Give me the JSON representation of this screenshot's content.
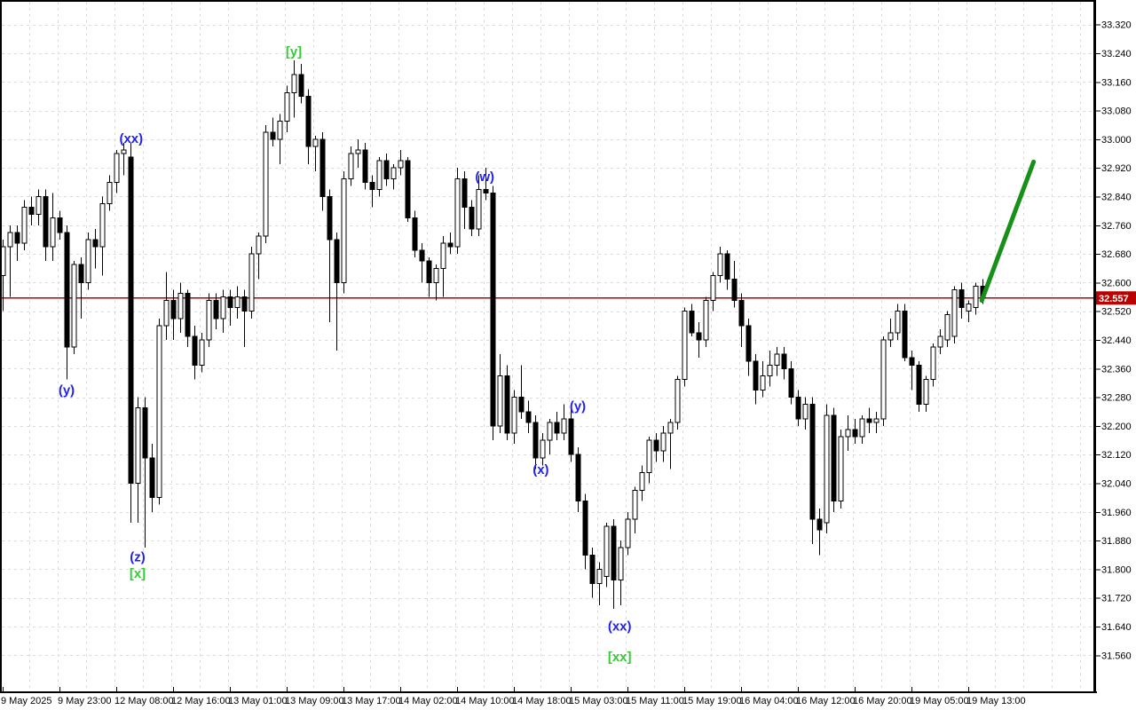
{
  "colors": {
    "background": "#ffffff",
    "grid": "#dcdcdc",
    "axis": "#000000",
    "text": "#000000",
    "candle_outline": "#000000",
    "bull_body": "#ffffff",
    "bear_body": "#000000",
    "price_line": "#b80000",
    "price_badge_bg": "#bb0000",
    "price_badge_text": "#ffffff",
    "label_blue": "#2222ee",
    "label_green": "#32cd32",
    "arrow_green": "#169016"
  },
  "price_axis": {
    "labels": [
      "33.320",
      "33.240",
      "33.160",
      "33.080",
      "33.000",
      "32.920",
      "32.840",
      "32.760",
      "32.680",
      "32.600",
      "32.520",
      "32.440",
      "32.360",
      "32.280",
      "32.200",
      "32.120",
      "32.040",
      "31.960",
      "31.880",
      "31.800",
      "31.720",
      "31.640",
      "31.560"
    ],
    "current_price_label": "32.557"
  },
  "time_axis": {
    "labels": [
      "9 May 2025",
      "9 May 23:00",
      "12 May 08:00",
      "12 May 16:00",
      "13 May 01:00",
      "13 May 09:00",
      "13 May 17:00",
      "14 May 02:00",
      "14 May 10:00",
      "14 May 18:00",
      "15 May 03:00",
      "15 May 11:00",
      "15 May 19:00",
      "16 May 04:00",
      "16 May 12:00",
      "16 May 20:00",
      "19 May 05:00",
      "19 May 13:00"
    ]
  },
  "chart_data": {
    "type": "candlestick",
    "title": "",
    "ylabel": "Price",
    "ylim": [
      31.52,
      33.36
    ],
    "price_grid_step": 0.08,
    "current_price": 32.557,
    "candles_ohlc": [
      [
        32.62,
        32.72,
        32.52,
        32.7
      ],
      [
        32.7,
        32.76,
        32.56,
        32.74
      ],
      [
        32.74,
        32.76,
        32.66,
        32.71
      ],
      [
        32.71,
        32.83,
        32.69,
        32.81
      ],
      [
        32.81,
        32.84,
        32.76,
        32.79
      ],
      [
        32.79,
        32.86,
        32.76,
        32.84
      ],
      [
        32.84,
        32.86,
        32.66,
        32.7
      ],
      [
        32.7,
        32.85,
        32.66,
        32.78
      ],
      [
        32.78,
        32.8,
        32.72,
        32.74
      ],
      [
        32.74,
        32.76,
        32.33,
        32.42
      ],
      [
        32.42,
        32.66,
        32.4,
        32.65
      ],
      [
        32.65,
        32.67,
        32.5,
        32.6
      ],
      [
        32.6,
        32.74,
        32.58,
        32.72
      ],
      [
        32.72,
        32.75,
        32.64,
        32.7
      ],
      [
        32.7,
        32.84,
        32.62,
        32.82
      ],
      [
        32.82,
        32.9,
        32.8,
        32.88
      ],
      [
        32.88,
        32.97,
        32.85,
        32.96
      ],
      [
        32.96,
        32.99,
        32.9,
        32.97
      ],
      [
        32.95,
        32.99,
        31.93,
        32.04
      ],
      [
        32.04,
        32.28,
        31.93,
        32.25
      ],
      [
        32.25,
        32.28,
        31.86,
        32.11
      ],
      [
        32.11,
        32.15,
        31.96,
        32.0
      ],
      [
        32.0,
        32.5,
        31.98,
        32.48
      ],
      [
        32.48,
        32.63,
        32.44,
        32.55
      ],
      [
        32.55,
        32.58,
        32.44,
        32.5
      ],
      [
        32.5,
        32.6,
        32.46,
        32.57
      ],
      [
        32.57,
        32.58,
        32.42,
        32.45
      ],
      [
        32.45,
        32.48,
        32.33,
        32.37
      ],
      [
        32.37,
        32.46,
        32.35,
        32.44
      ],
      [
        32.44,
        32.57,
        32.42,
        32.55
      ],
      [
        32.55,
        32.57,
        32.47,
        32.5
      ],
      [
        32.5,
        32.58,
        32.46,
        32.56
      ],
      [
        32.56,
        32.58,
        32.48,
        32.53
      ],
      [
        32.53,
        32.59,
        32.5,
        32.56
      ],
      [
        32.56,
        32.58,
        32.42,
        32.52
      ],
      [
        32.52,
        32.7,
        32.5,
        32.68
      ],
      [
        32.68,
        32.74,
        32.61,
        32.73
      ],
      [
        32.73,
        33.04,
        32.71,
        33.02
      ],
      [
        33.02,
        33.06,
        32.98,
        33.0
      ],
      [
        33.0,
        33.07,
        32.93,
        33.05
      ],
      [
        33.05,
        33.15,
        33.02,
        33.13
      ],
      [
        33.13,
        33.22,
        33.06,
        33.18
      ],
      [
        33.18,
        33.21,
        33.1,
        33.12
      ],
      [
        33.12,
        33.14,
        32.93,
        32.98
      ],
      [
        32.98,
        33.01,
        32.91,
        33.0
      ],
      [
        33.0,
        33.02,
        32.8,
        32.84
      ],
      [
        32.84,
        32.86,
        32.49,
        32.72
      ],
      [
        32.72,
        32.74,
        32.41,
        32.6
      ],
      [
        32.6,
        32.91,
        32.57,
        32.89
      ],
      [
        32.89,
        32.98,
        32.87,
        32.96
      ],
      [
        32.96,
        33.0,
        32.92,
        32.97
      ],
      [
        32.97,
        32.99,
        32.86,
        32.88
      ],
      [
        32.88,
        32.9,
        32.81,
        32.86
      ],
      [
        32.86,
        32.95,
        32.84,
        32.94
      ],
      [
        32.94,
        32.96,
        32.87,
        32.89
      ],
      [
        32.89,
        32.93,
        32.86,
        32.92
      ],
      [
        32.92,
        32.97,
        32.9,
        32.94
      ],
      [
        32.94,
        32.95,
        32.77,
        32.78
      ],
      [
        32.78,
        32.8,
        32.67,
        32.69
      ],
      [
        32.69,
        32.71,
        32.6,
        32.66
      ],
      [
        32.66,
        32.67,
        32.56,
        32.6
      ],
      [
        32.6,
        32.65,
        32.55,
        32.64
      ],
      [
        32.64,
        32.73,
        32.56,
        32.71
      ],
      [
        32.71,
        32.74,
        32.68,
        32.7
      ],
      [
        32.7,
        32.92,
        32.68,
        32.89
      ],
      [
        32.89,
        32.91,
        32.75,
        32.81
      ],
      [
        32.81,
        32.83,
        32.73,
        32.75
      ],
      [
        32.75,
        32.9,
        32.73,
        32.86
      ],
      [
        32.86,
        32.92,
        32.83,
        32.85
      ],
      [
        32.85,
        32.87,
        32.16,
        32.2
      ],
      [
        32.2,
        32.4,
        32.18,
        32.34
      ],
      [
        32.34,
        32.37,
        32.16,
        32.18
      ],
      [
        32.18,
        32.3,
        32.15,
        32.28
      ],
      [
        32.28,
        32.37,
        32.22,
        32.24
      ],
      [
        32.24,
        32.27,
        32.18,
        32.21
      ],
      [
        32.21,
        32.23,
        32.08,
        32.11
      ],
      [
        32.11,
        32.18,
        32.09,
        32.16
      ],
      [
        32.16,
        32.22,
        32.12,
        32.21
      ],
      [
        32.21,
        32.24,
        32.16,
        32.18
      ],
      [
        32.18,
        32.26,
        32.16,
        32.22
      ],
      [
        32.22,
        32.26,
        32.1,
        32.12
      ],
      [
        32.12,
        32.14,
        31.96,
        31.99
      ],
      [
        31.99,
        32.01,
        31.8,
        31.84
      ],
      [
        31.84,
        31.86,
        31.72,
        31.76
      ],
      [
        31.76,
        31.82,
        31.7,
        31.8
      ],
      [
        31.78,
        31.93,
        31.75,
        31.92
      ],
      [
        31.92,
        31.94,
        31.69,
        31.77
      ],
      [
        31.77,
        31.88,
        31.7,
        31.86
      ],
      [
        31.86,
        31.96,
        31.84,
        31.94
      ],
      [
        31.94,
        32.03,
        31.9,
        32.02
      ],
      [
        32.02,
        32.09,
        31.99,
        32.07
      ],
      [
        32.07,
        32.17,
        32.04,
        32.16
      ],
      [
        32.16,
        32.18,
        32.1,
        32.13
      ],
      [
        32.13,
        32.2,
        32.1,
        32.18
      ],
      [
        32.18,
        32.22,
        32.08,
        32.21
      ],
      [
        32.21,
        32.34,
        32.19,
        32.33
      ],
      [
        32.33,
        32.53,
        32.31,
        32.52
      ],
      [
        32.52,
        32.54,
        32.45,
        32.46
      ],
      [
        32.46,
        32.49,
        32.39,
        32.44
      ],
      [
        32.44,
        32.56,
        32.42,
        32.55
      ],
      [
        32.55,
        32.63,
        32.52,
        32.62
      ],
      [
        32.62,
        32.7,
        32.6,
        32.68
      ],
      [
        32.68,
        32.69,
        32.58,
        32.61
      ],
      [
        32.61,
        32.66,
        32.53,
        32.55
      ],
      [
        32.55,
        32.57,
        32.42,
        32.48
      ],
      [
        32.48,
        32.5,
        32.34,
        32.38
      ],
      [
        32.38,
        32.4,
        32.26,
        32.3
      ],
      [
        32.3,
        32.38,
        32.28,
        32.34
      ],
      [
        32.34,
        32.41,
        32.31,
        32.37
      ],
      [
        32.37,
        32.42,
        32.34,
        32.4
      ],
      [
        32.4,
        32.42,
        32.33,
        32.36
      ],
      [
        32.36,
        32.38,
        32.26,
        32.28
      ],
      [
        32.28,
        32.3,
        32.2,
        32.22
      ],
      [
        32.22,
        32.28,
        32.19,
        32.26
      ],
      [
        32.26,
        32.28,
        31.87,
        31.94
      ],
      [
        31.94,
        31.97,
        31.84,
        31.91
      ],
      [
        31.93,
        32.26,
        31.9,
        32.23
      ],
      [
        32.23,
        32.25,
        31.96,
        31.99
      ],
      [
        31.99,
        32.19,
        31.97,
        32.17
      ],
      [
        32.17,
        32.23,
        32.13,
        32.19
      ],
      [
        32.19,
        32.22,
        32.15,
        32.17
      ],
      [
        32.17,
        32.23,
        32.15,
        32.22
      ],
      [
        32.22,
        32.25,
        32.18,
        32.21
      ],
      [
        32.21,
        32.24,
        32.18,
        32.22
      ],
      [
        32.22,
        32.45,
        32.2,
        32.44
      ],
      [
        32.44,
        32.5,
        32.42,
        32.46
      ],
      [
        32.46,
        32.54,
        32.44,
        32.52
      ],
      [
        32.52,
        32.54,
        32.38,
        32.39
      ],
      [
        32.39,
        32.41,
        32.3,
        32.37
      ],
      [
        32.37,
        32.38,
        32.24,
        32.26
      ],
      [
        32.26,
        32.34,
        32.24,
        32.33
      ],
      [
        32.33,
        32.43,
        32.31,
        32.42
      ],
      [
        32.42,
        32.47,
        32.4,
        32.45
      ],
      [
        32.44,
        32.52,
        32.42,
        32.51
      ],
      [
        32.45,
        32.59,
        32.43,
        32.58
      ],
      [
        32.58,
        32.6,
        32.5,
        32.53
      ],
      [
        32.52,
        32.55,
        32.49,
        32.54
      ],
      [
        32.53,
        32.6,
        32.51,
        32.59
      ],
      [
        32.59,
        32.61,
        32.54,
        32.557
      ]
    ],
    "annotations": [
      {
        "text": "(y)",
        "color": "blue",
        "index": 9,
        "price": 32.3
      },
      {
        "text": "(xx)",
        "color": "blue",
        "index": 18.1,
        "price": 33.002
      },
      {
        "text": "(z)",
        "color": "blue",
        "index": 19,
        "price": 31.834
      },
      {
        "text": "[x]",
        "color": "green",
        "index": 19,
        "price": 31.789
      },
      {
        "text": "[y]",
        "color": "green",
        "index": 41,
        "price": 33.245
      },
      {
        "text": "(w)",
        "color": "blue",
        "index": 67.9,
        "price": 32.896
      },
      {
        "text": "(x)",
        "color": "blue",
        "index": 75.8,
        "price": 32.079
      },
      {
        "text": "(y)",
        "color": "blue",
        "index": 81,
        "price": 32.255
      },
      {
        "text": "(xx)",
        "color": "blue",
        "index": 86.9,
        "price": 31.641
      },
      {
        "text": "[xx]",
        "color": "green",
        "index": 86.9,
        "price": 31.556
      }
    ],
    "trend_line": {
      "from": {
        "index": 137.9,
        "price": 32.55
      },
      "to": {
        "index": 145.2,
        "price": 32.937
      }
    }
  }
}
